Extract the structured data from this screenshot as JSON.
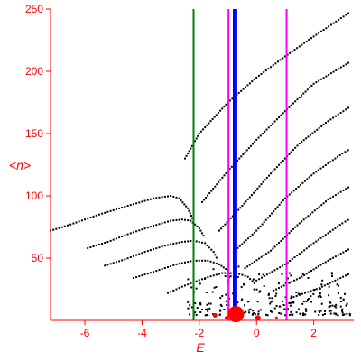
{
  "chart_data": {
    "type": "scatter",
    "xlabel": "E",
    "ylabel": "<n>",
    "xlim": [
      -7.2,
      3.4
    ],
    "ylim": [
      0,
      250
    ],
    "x_ticks": [
      -6,
      -4,
      -2,
      0,
      2
    ],
    "x_tick_labels": [
      "-6",
      "-4",
      "-2",
      "0",
      "2"
    ],
    "y_ticks": [
      50,
      100,
      150,
      200,
      250
    ],
    "y_tick_labels": [
      "50",
      "100",
      "150",
      "200",
      "250"
    ],
    "colors": {
      "axes": "#ff0000",
      "points": "#000000",
      "vline_green": "#008000",
      "vline_blue": "#0000ff",
      "vline_magenta": "#ff00ff",
      "blobs": "#ff0000"
    },
    "vertical_lines": [
      {
        "x": -2.2,
        "color": "#008000"
      },
      {
        "x": -0.98,
        "color": "#ff00ff"
      },
      {
        "x": -0.78,
        "color": "#0000ff"
      },
      {
        "x": -0.72,
        "color": "#0000ff"
      },
      {
        "x": 1.05,
        "color": "#ff00ff"
      }
    ],
    "curves": [
      [
        [
          -7.2,
          72
        ],
        [
          -6.5,
          77
        ],
        [
          -5.5,
          85
        ],
        [
          -4.5,
          92
        ],
        [
          -3.6,
          98
        ],
        [
          -3.0,
          100
        ],
        [
          -2.7,
          98
        ],
        [
          -2.4,
          90
        ],
        [
          -2.2,
          80
        ]
      ],
      [
        [
          -5.9,
          58
        ],
        [
          -5.2,
          63
        ],
        [
          -4.4,
          70
        ],
        [
          -3.6,
          76
        ],
        [
          -3.0,
          80
        ],
        [
          -2.6,
          81
        ],
        [
          -2.3,
          80
        ],
        [
          -2.0,
          74
        ],
        [
          -1.8,
          66
        ]
      ],
      [
        [
          -5.3,
          44
        ],
        [
          -4.6,
          49
        ],
        [
          -3.9,
          55
        ],
        [
          -3.2,
          60
        ],
        [
          -2.6,
          63
        ],
        [
          -2.2,
          64
        ],
        [
          -1.8,
          62
        ],
        [
          -1.5,
          55
        ],
        [
          -1.35,
          48
        ]
      ],
      [
        [
          -4.3,
          34
        ],
        [
          -3.6,
          39
        ],
        [
          -2.8,
          45
        ],
        [
          -2.2,
          48
        ],
        [
          -1.7,
          48
        ],
        [
          -1.3,
          45
        ],
        [
          -1.0,
          40
        ],
        [
          -0.85,
          33
        ]
      ],
      [
        [
          -3.1,
          22
        ],
        [
          -2.5,
          28
        ],
        [
          -1.8,
          34
        ],
        [
          -1.2,
          38
        ],
        [
          -0.7,
          38
        ],
        [
          -0.3,
          35
        ],
        [
          0.0,
          28
        ]
      ],
      [
        [
          -2.5,
          130
        ],
        [
          -2.0,
          150
        ],
        [
          -1.0,
          175
        ],
        [
          0.0,
          195
        ],
        [
          1.0,
          212
        ],
        [
          2.0,
          228
        ],
        [
          3.3,
          248
        ]
      ],
      [
        [
          -1.9,
          95
        ],
        [
          -1.0,
          120
        ],
        [
          0.0,
          145
        ],
        [
          1.0,
          168
        ],
        [
          2.0,
          190
        ],
        [
          3.3,
          208
        ]
      ],
      [
        [
          -1.3,
          72
        ],
        [
          -0.5,
          92
        ],
        [
          0.5,
          118
        ],
        [
          1.5,
          142
        ],
        [
          2.5,
          160
        ],
        [
          3.3,
          172
        ]
      ],
      [
        [
          -0.8,
          55
        ],
        [
          0.0,
          72
        ],
        [
          1.0,
          98
        ],
        [
          2.0,
          118
        ],
        [
          3.0,
          134
        ],
        [
          3.3,
          138
        ]
      ],
      [
        [
          -0.4,
          42
        ],
        [
          0.5,
          56
        ],
        [
          1.5,
          78
        ],
        [
          2.5,
          97
        ],
        [
          3.3,
          108
        ]
      ],
      [
        [
          0.0,
          32
        ],
        [
          1.0,
          45
        ],
        [
          2.0,
          62
        ],
        [
          3.0,
          78
        ],
        [
          3.3,
          82
        ]
      ],
      [
        [
          0.6,
          24
        ],
        [
          1.5,
          34
        ],
        [
          2.5,
          48
        ],
        [
          3.3,
          58
        ]
      ],
      [
        [
          1.2,
          18
        ],
        [
          2.2,
          26
        ],
        [
          3.3,
          38
        ]
      ]
    ],
    "red_points": [
      {
        "x": -0.72,
        "y": 5,
        "size": 9
      },
      {
        "x": -1.45,
        "y": 4,
        "size": 2.5
      },
      {
        "x": -1.05,
        "y": 2,
        "size": 2
      },
      {
        "x": 0.05,
        "y": 2,
        "size": 3
      },
      {
        "x": 0.7,
        "y": 2,
        "size": 1.5
      }
    ]
  }
}
